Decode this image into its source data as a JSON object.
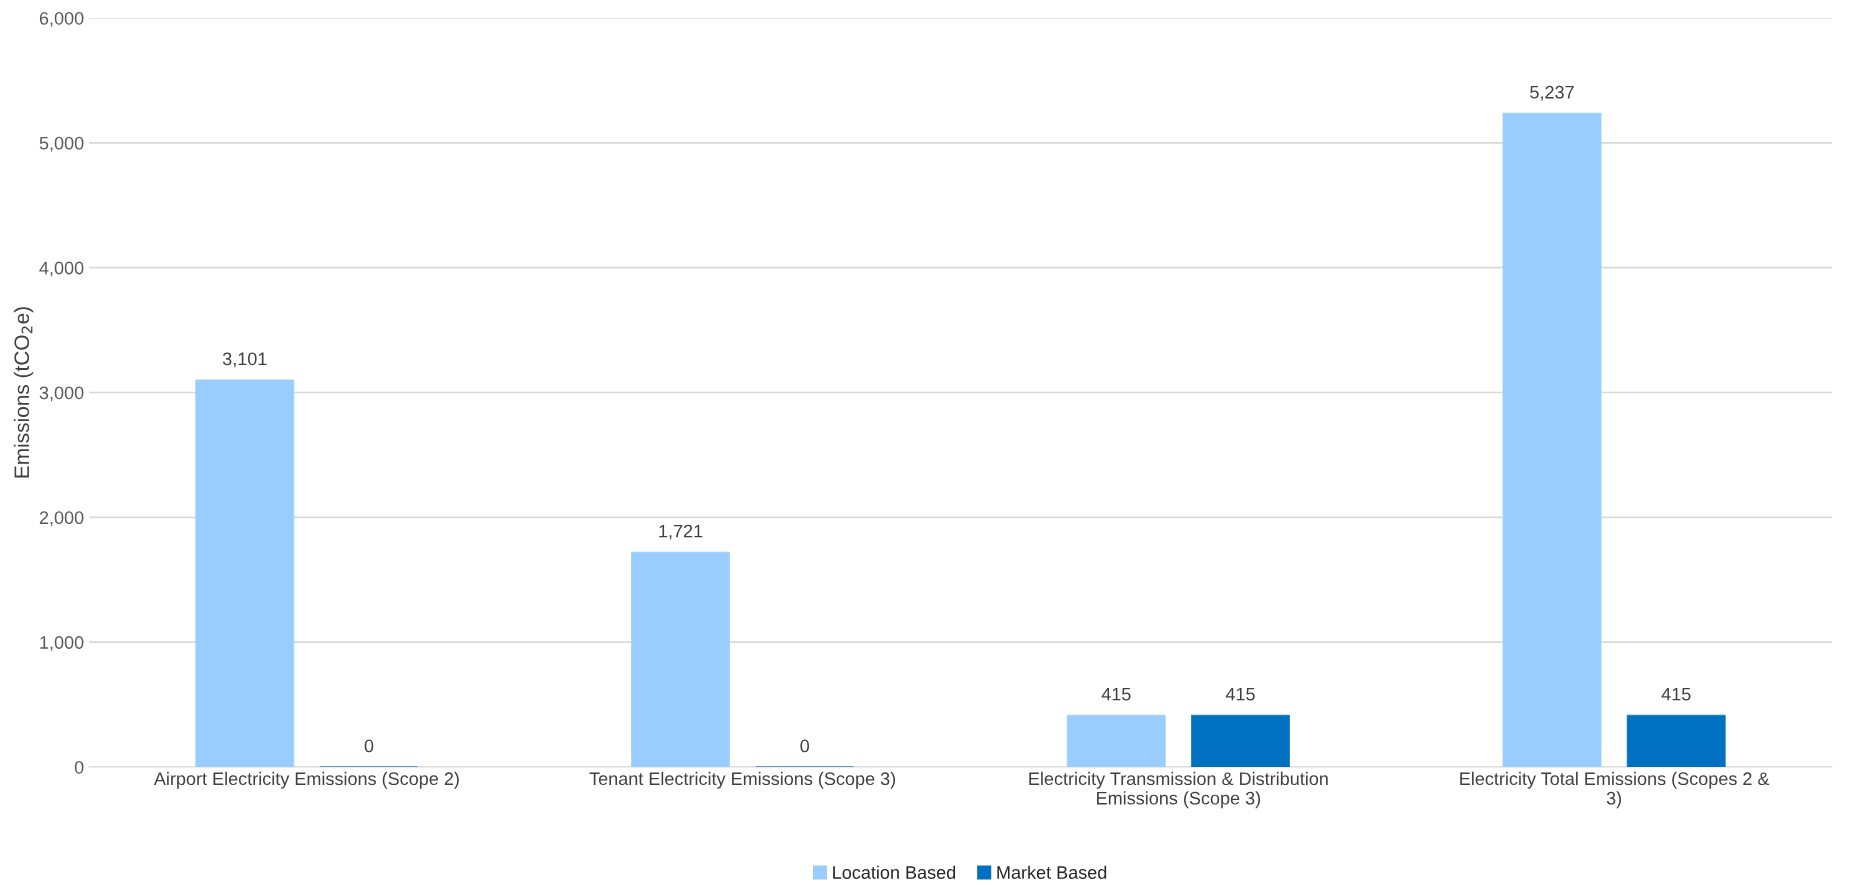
{
  "chart_data": {
    "type": "bar",
    "ylabel": "Emissions (tCO$_{2}$e)",
    "categories": [
      "Airport Electricity Emissions (Scope 2)",
      "Tenant Electricity Emissions (Scope 3)",
      "Electricity Transmission & Distribution\nEmissions (Scope 3)",
      "Electricity Total Emissions (Scopes 2 &\n3)"
    ],
    "series": [
      {
        "name": "Location Based",
        "color": "#99ccff",
        "values": [
          3101,
          1721,
          415,
          5237
        ],
        "value_labels": [
          "3,101",
          "1,721",
          "415",
          "5,237"
        ]
      },
      {
        "name": "Market Based",
        "color": "#0070c0",
        "values": [
          0,
          0,
          415,
          415
        ],
        "value_labels": [
          "0",
          "0",
          "415",
          "415"
        ]
      }
    ],
    "ylim": [
      0,
      6000
    ],
    "yticks": [
      0,
      {
        "value": 1000,
        "label": "1,000"
      },
      {
        "value": 2000,
        "label": "2,000"
      },
      {
        "value": 3000,
        "label": "3,000"
      },
      {
        "value": 4000,
        "label": "4,000"
      },
      {
        "value": 5000,
        "label": "5,000"
      },
      {
        "value": 6000,
        "label": "6,000"
      }
    ],
    "grid": "y",
    "legend": "bottom"
  }
}
